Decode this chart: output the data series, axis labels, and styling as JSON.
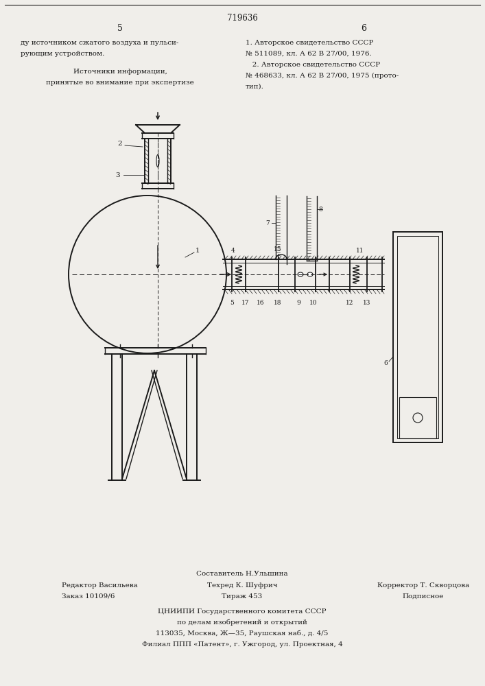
{
  "bg_color": "#f0eeea",
  "page_width": 7.07,
  "page_height": 10.0,
  "header_page_num": "719636",
  "header_left_num": "5",
  "header_right_num": "6",
  "left_text_lines": [
    "ду источником сжатого воздуха и пульси-",
    "рующим устройством."
  ],
  "left_center_text": [
    "Источники информации,",
    "принятые во внимание при экспертизе"
  ],
  "right_text_lines": [
    "1. Авторское свидетельство СССР",
    "№ 511089, кл. А 62 В 27/00, 1976.",
    "   2. Авторское свидетельство СССР",
    "№ 468633, кл. А 62 В 27/00, 1975 (прото-",
    "тип)."
  ],
  "footer_line1_center": "Составитель Н.Ульшина",
  "footer_col1_line1": "Редактор Васильева",
  "footer_col1_line2": "Заказ 10109/6",
  "footer_col2_line1": "Техред К. Шуфрич",
  "footer_col2_line2": "Тираж 453",
  "footer_col3_line1": "Корректор Т. Скворцова",
  "footer_col3_line2": "Подписное",
  "footer_bottom1": "ЦНИИПИ Государственного комитета СССР",
  "footer_bottom2": "по делам изобретений и открытий",
  "footer_bottom3": "113035, Москва, Ж—35, Раушская наб., д. 4/5",
  "footer_bottom4": "Филиал ППП «Патент», г. Ужгород, ул. Проектная, 4"
}
